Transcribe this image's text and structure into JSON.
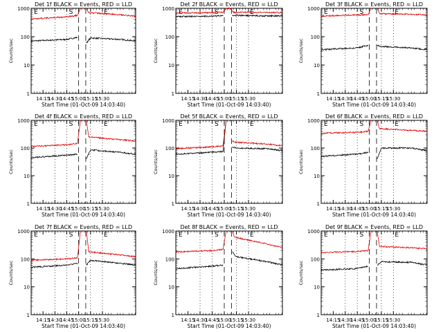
{
  "chart_data": [
    {
      "type": "line",
      "title": "Det 1f BLACK = Events, RED = LLD",
      "ylabel": "Counts/sec",
      "xlabel": "Start Time (01-Oct-09 14:03:40)",
      "x_ticks": [
        "14:15",
        "14:30",
        "14:45",
        "15:00",
        "15:15",
        "15:30"
      ],
      "y_ticks": [
        "1",
        "10",
        "100",
        "1000"
      ],
      "ylim": [
        1,
        1000
      ],
      "y_scale": "log",
      "markers": [
        "E",
        "S",
        "E"
      ],
      "series": [
        {
          "color": "#000000",
          "values": [
            [
              0,
              70
            ],
            [
              60,
              80
            ],
            [
              78,
              95
            ],
            [
              90,
              null
            ],
            [
              93,
              60
            ],
            [
              100,
              90
            ],
            [
              150,
              80
            ],
            [
              176,
              70
            ]
          ]
        },
        {
          "color": "#e00000",
          "values": [
            [
              0,
              420
            ],
            [
              60,
              500
            ],
            [
              78,
              560
            ],
            [
              83,
              1000
            ],
            [
              90,
              null
            ],
            [
              93,
              1000
            ],
            [
              97,
              700
            ],
            [
              150,
              600
            ],
            [
              176,
              520
            ]
          ]
        }
      ]
    },
    {
      "type": "line",
      "title": "Det 2f BLACK = Events, RED = LLD",
      "ylabel": "Counts/sec",
      "xlabel": "Start Time (01-Oct-09 14:03:40)",
      "x_ticks": [
        "14:15",
        "14:30",
        "14:45",
        "15:00",
        "15:15",
        "15:30"
      ],
      "y_ticks": [
        "1",
        "10",
        "100",
        "1000"
      ],
      "ylim": [
        1,
        1000
      ],
      "y_scale": "log",
      "markers": [
        "E",
        "S",
        "E"
      ],
      "series": [
        {
          "color": "#000000",
          "values": [
            [
              0,
              510
            ],
            [
              60,
              530
            ],
            [
              78,
              540
            ],
            [
              83,
              null
            ],
            [
              93,
              560
            ],
            [
              100,
              560
            ],
            [
              150,
              540
            ],
            [
              176,
              540
            ]
          ]
        },
        {
          "color": "#e00000",
          "values": [
            [
              0,
              680
            ],
            [
              60,
              700
            ],
            [
              78,
              720
            ],
            [
              83,
              1000
            ],
            [
              90,
              1000
            ],
            [
              95,
              720
            ],
            [
              150,
              720
            ],
            [
              176,
              700
            ]
          ]
        }
      ]
    },
    {
      "type": "line",
      "title": "Det 3f BLACK = Events, RED = LLD",
      "ylabel": "Counts/sec",
      "xlabel": "Start Time (01-Oct-09 14:03:40)",
      "x_ticks": [
        "14:15",
        "14:30",
        "14:45",
        "15:00",
        "15:15",
        "15:30"
      ],
      "y_ticks": [
        "1",
        "10",
        "100",
        "1000"
      ],
      "ylim": [
        1,
        1000
      ],
      "y_scale": "log",
      "markers": [
        "E",
        "S",
        "E"
      ],
      "series": [
        {
          "color": "#000000",
          "values": [
            [
              0,
              35
            ],
            [
              60,
              40
            ],
            [
              78,
              50
            ],
            [
              90,
              null
            ],
            [
              93,
              50
            ],
            [
              100,
              45
            ],
            [
              150,
              40
            ],
            [
              176,
              35
            ]
          ]
        },
        {
          "color": "#e00000",
          "values": [
            [
              0,
              540
            ],
            [
              60,
              580
            ],
            [
              78,
              600
            ],
            [
              83,
              1000
            ],
            [
              90,
              null
            ],
            [
              93,
              1000
            ],
            [
              97,
              640
            ],
            [
              150,
              620
            ],
            [
              176,
              580
            ]
          ]
        }
      ]
    },
    {
      "type": "line",
      "title": "Det 4f BLACK = Events, RED = LLD",
      "ylabel": "Counts/sec",
      "xlabel": "Start Time (01-Oct-09 14:03:40)",
      "x_ticks": [
        "14:15",
        "14:30",
        "14:45",
        "15:00",
        "15:15",
        "15:30"
      ],
      "y_ticks": [
        "1",
        "10",
        "100",
        "1000"
      ],
      "ylim": [
        1,
        1000
      ],
      "y_scale": "log",
      "markers": [
        "E",
        "S",
        "E"
      ],
      "series": [
        {
          "color": "#000000",
          "values": [
            [
              0,
              45
            ],
            [
              60,
              55
            ],
            [
              78,
              60
            ],
            [
              90,
              null
            ],
            [
              93,
              40
            ],
            [
              100,
              85
            ],
            [
              150,
              70
            ],
            [
              176,
              60
            ]
          ]
        },
        {
          "color": "#e00000",
          "values": [
            [
              0,
              115
            ],
            [
              60,
              130
            ],
            [
              78,
              150
            ],
            [
              83,
              1000
            ],
            [
              90,
              null
            ],
            [
              93,
              1000
            ],
            [
              97,
              250
            ],
            [
              150,
              200
            ],
            [
              176,
              180
            ]
          ]
        }
      ]
    },
    {
      "type": "line",
      "title": "Det 5f BLACK = Events, RED = LLD",
      "ylabel": "Counts/sec",
      "xlabel": "Start Time (01-Oct-09 14:03:40)",
      "x_ticks": [
        "14:15",
        "14:30",
        "14:45",
        "15:00",
        "15:15",
        "15:30"
      ],
      "y_ticks": [
        "1",
        "10",
        "100",
        "1000"
      ],
      "ylim": [
        1,
        1000
      ],
      "y_scale": "log",
      "markers": [
        "E",
        "S",
        "E"
      ],
      "series": [
        {
          "color": "#000000",
          "values": [
            [
              0,
              60
            ],
            [
              60,
              70
            ],
            [
              78,
              75
            ],
            [
              83,
              1000
            ],
            [
              90,
              null
            ],
            [
              93,
              110
            ],
            [
              100,
              100
            ],
            [
              150,
              95
            ],
            [
              176,
              80
            ]
          ]
        },
        {
          "color": "#e00000",
          "values": [
            [
              0,
              95
            ],
            [
              60,
              110
            ],
            [
              78,
              120
            ],
            [
              83,
              1000
            ],
            [
              90,
              null
            ],
            [
              93,
              180
            ],
            [
              100,
              160
            ],
            [
              150,
              140
            ],
            [
              176,
              120
            ]
          ]
        }
      ]
    },
    {
      "type": "line",
      "title": "Det 6f BLACK = Events, RED = LLD",
      "ylabel": "Counts/sec",
      "xlabel": "Start Time (01-Oct-09 14:03:40)",
      "x_ticks": [
        "14:15",
        "14:30",
        "14:45",
        "15:00",
        "15:15",
        "15:30"
      ],
      "y_ticks": [
        "1",
        "10",
        "100",
        "1000"
      ],
      "ylim": [
        1,
        1000
      ],
      "y_scale": "log",
      "markers": [
        "E",
        "S",
        "E"
      ],
      "series": [
        {
          "color": "#000000",
          "values": [
            [
              0,
              50
            ],
            [
              60,
              60
            ],
            [
              78,
              70
            ],
            [
              90,
              null
            ],
            [
              93,
              40
            ],
            [
              100,
              100
            ],
            [
              150,
              100
            ],
            [
              176,
              80
            ]
          ]
        },
        {
          "color": "#e00000",
          "values": [
            [
              0,
              340
            ],
            [
              60,
              370
            ],
            [
              78,
              400
            ],
            [
              83,
              1000
            ],
            [
              90,
              null
            ],
            [
              93,
              1000
            ],
            [
              97,
              500
            ],
            [
              150,
              430
            ],
            [
              176,
              400
            ]
          ]
        }
      ]
    },
    {
      "type": "line",
      "title": "Det 7f BLACK = Events, RED = LLD",
      "ylabel": "Counts/sec",
      "xlabel": "Start Time (01-Oct-09 14:03:40)",
      "x_ticks": [
        "14:15",
        "14:30",
        "14:45",
        "15:00",
        "15:15",
        "15:30"
      ],
      "y_ticks": [
        "1",
        "10",
        "100",
        "1000"
      ],
      "ylim": [
        1,
        1000
      ],
      "y_scale": "log",
      "markers": [
        "E",
        "S",
        "E"
      ],
      "series": [
        {
          "color": "#000000",
          "values": [
            [
              0,
              50
            ],
            [
              60,
              60
            ],
            [
              78,
              70
            ],
            [
              90,
              null
            ],
            [
              93,
              60
            ],
            [
              100,
              90
            ],
            [
              150,
              70
            ],
            [
              176,
              60
            ]
          ]
        },
        {
          "color": "#e00000",
          "values": [
            [
              0,
              90
            ],
            [
              60,
              100
            ],
            [
              78,
              110
            ],
            [
              83,
              1000
            ],
            [
              90,
              null
            ],
            [
              93,
              1000
            ],
            [
              97,
              180
            ],
            [
              150,
              140
            ],
            [
              176,
              120
            ]
          ]
        }
      ]
    },
    {
      "type": "line",
      "title": "Det 8f BLACK = Events, RED = LLD",
      "ylabel": "Counts/sec",
      "xlabel": "Start Time (01-Oct-09 14:03:40)",
      "x_ticks": [
        "14:15",
        "14:30",
        "14:45",
        "15:00",
        "15:15",
        "15:30"
      ],
      "y_ticks": [
        "1",
        "10",
        "100",
        "1000"
      ],
      "ylim": [
        1,
        1000
      ],
      "y_scale": "log",
      "markers": [
        "E",
        "S",
        "E"
      ],
      "series": [
        {
          "color": "#000000",
          "values": [
            [
              0,
              45
            ],
            [
              60,
              55
            ],
            [
              78,
              60
            ],
            [
              90,
              null
            ],
            [
              93,
              180
            ],
            [
              100,
              120
            ],
            [
              150,
              80
            ],
            [
              176,
              60
            ]
          ]
        },
        {
          "color": "#e00000",
          "values": [
            [
              0,
              180
            ],
            [
              60,
              200
            ],
            [
              78,
              220
            ],
            [
              83,
              1000
            ],
            [
              90,
              null
            ],
            [
              93,
              1000
            ],
            [
              97,
              600
            ],
            [
              150,
              350
            ],
            [
              176,
              250
            ]
          ]
        }
      ]
    },
    {
      "type": "line",
      "title": "Det 9f BLACK = Events, RED = LLD",
      "ylabel": "Counts/sec",
      "xlabel": "Start Time (01-Oct-09 14:03:40)",
      "x_ticks": [
        "14:15",
        "14:30",
        "14:45",
        "15:00",
        "15:15",
        "15:30"
      ],
      "y_ticks": [
        "1",
        "10",
        "100",
        "1000"
      ],
      "ylim": [
        1,
        1000
      ],
      "y_scale": "log",
      "markers": [
        "E",
        "S",
        "E"
      ],
      "series": [
        {
          "color": "#000000",
          "values": [
            [
              0,
              40
            ],
            [
              60,
              45
            ],
            [
              78,
              55
            ],
            [
              90,
              null
            ],
            [
              93,
              60
            ],
            [
              100,
              80
            ],
            [
              150,
              75
            ],
            [
              176,
              60
            ]
          ]
        },
        {
          "color": "#e00000",
          "values": [
            [
              0,
              170
            ],
            [
              60,
              185
            ],
            [
              78,
              200
            ],
            [
              83,
              1000
            ],
            [
              90,
              null
            ],
            [
              93,
              1000
            ],
            [
              97,
              280
            ],
            [
              150,
              250
            ],
            [
              176,
              230
            ]
          ]
        }
      ]
    }
  ]
}
